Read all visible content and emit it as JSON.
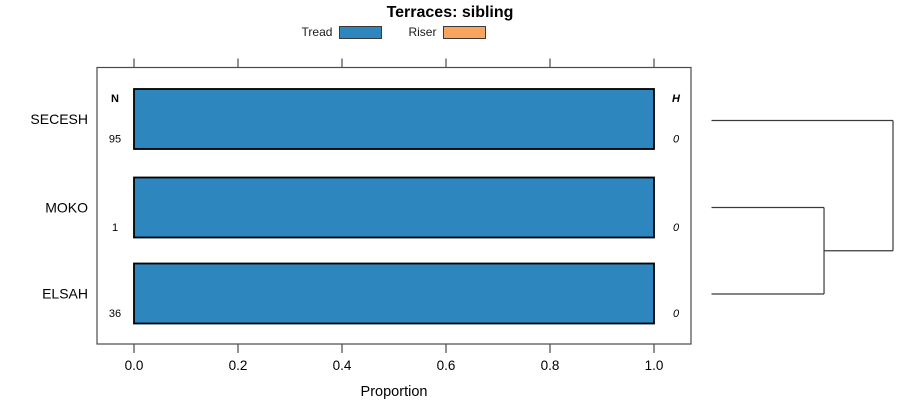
{
  "title": "Terraces: sibling",
  "chart_data": {
    "type": "bar",
    "orientation": "horizontal",
    "title": "Terraces: sibling",
    "xlabel": "Proportion",
    "xlim": [
      0,
      1
    ],
    "xticks": [
      0,
      0.2,
      0.4,
      0.6,
      0.8,
      1.0
    ],
    "xtick_labels": [
      "0.0",
      "0.2",
      "0.4",
      "0.6",
      "0.8",
      "1.0"
    ],
    "categories": [
      "SECESH",
      "MOKO",
      "ELSAH"
    ],
    "series": [
      {
        "name": "Tread",
        "color": "#2E86BE",
        "values": [
          1.0,
          1.0,
          1.0
        ]
      },
      {
        "name": "Riser",
        "color": "#F9A55F",
        "values": [
          0.0,
          0.0,
          0.0
        ]
      }
    ],
    "left_column": {
      "header": "N",
      "values": [
        "95",
        "1",
        "36"
      ]
    },
    "right_column": {
      "header": "H",
      "values": [
        "0",
        "0",
        "0"
      ]
    },
    "legend_position": "top",
    "grid": false,
    "dendrogram": {
      "leaves": [
        "SECESH",
        "MOKO",
        "ELSAH"
      ],
      "merges": [
        {
          "members": [
            "MOKO",
            "ELSAH"
          ],
          "relative_height": 0.62
        },
        {
          "members": [
            "MOKO+ELSAH",
            "SECESH"
          ],
          "relative_height": 1.0
        }
      ]
    }
  },
  "colors": {
    "bar_border": "#000000",
    "frame": "#4a4a4a",
    "dendrogram_line": "#3a3a3a",
    "text": "#000000"
  }
}
